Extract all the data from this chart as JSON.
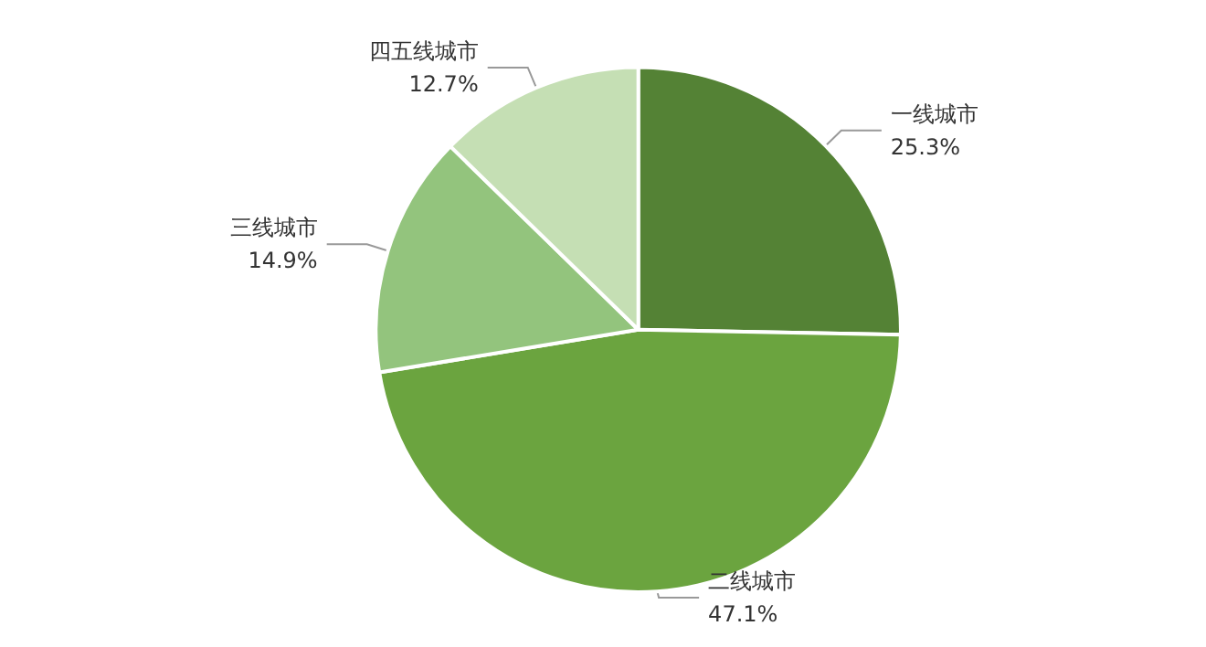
{
  "chart_data": {
    "type": "pie",
    "categories": [
      "一线城市",
      "二线城市",
      "三线城市",
      "四五线城市"
    ],
    "values": [
      25.3,
      47.1,
      14.9,
      12.7
    ],
    "colors": [
      "#548235",
      "#6ba43f",
      "#93c47d",
      "#c5dfb4"
    ],
    "value_labels": [
      "25.3%",
      "47.1%",
      "14.9%",
      "12.7%"
    ]
  }
}
